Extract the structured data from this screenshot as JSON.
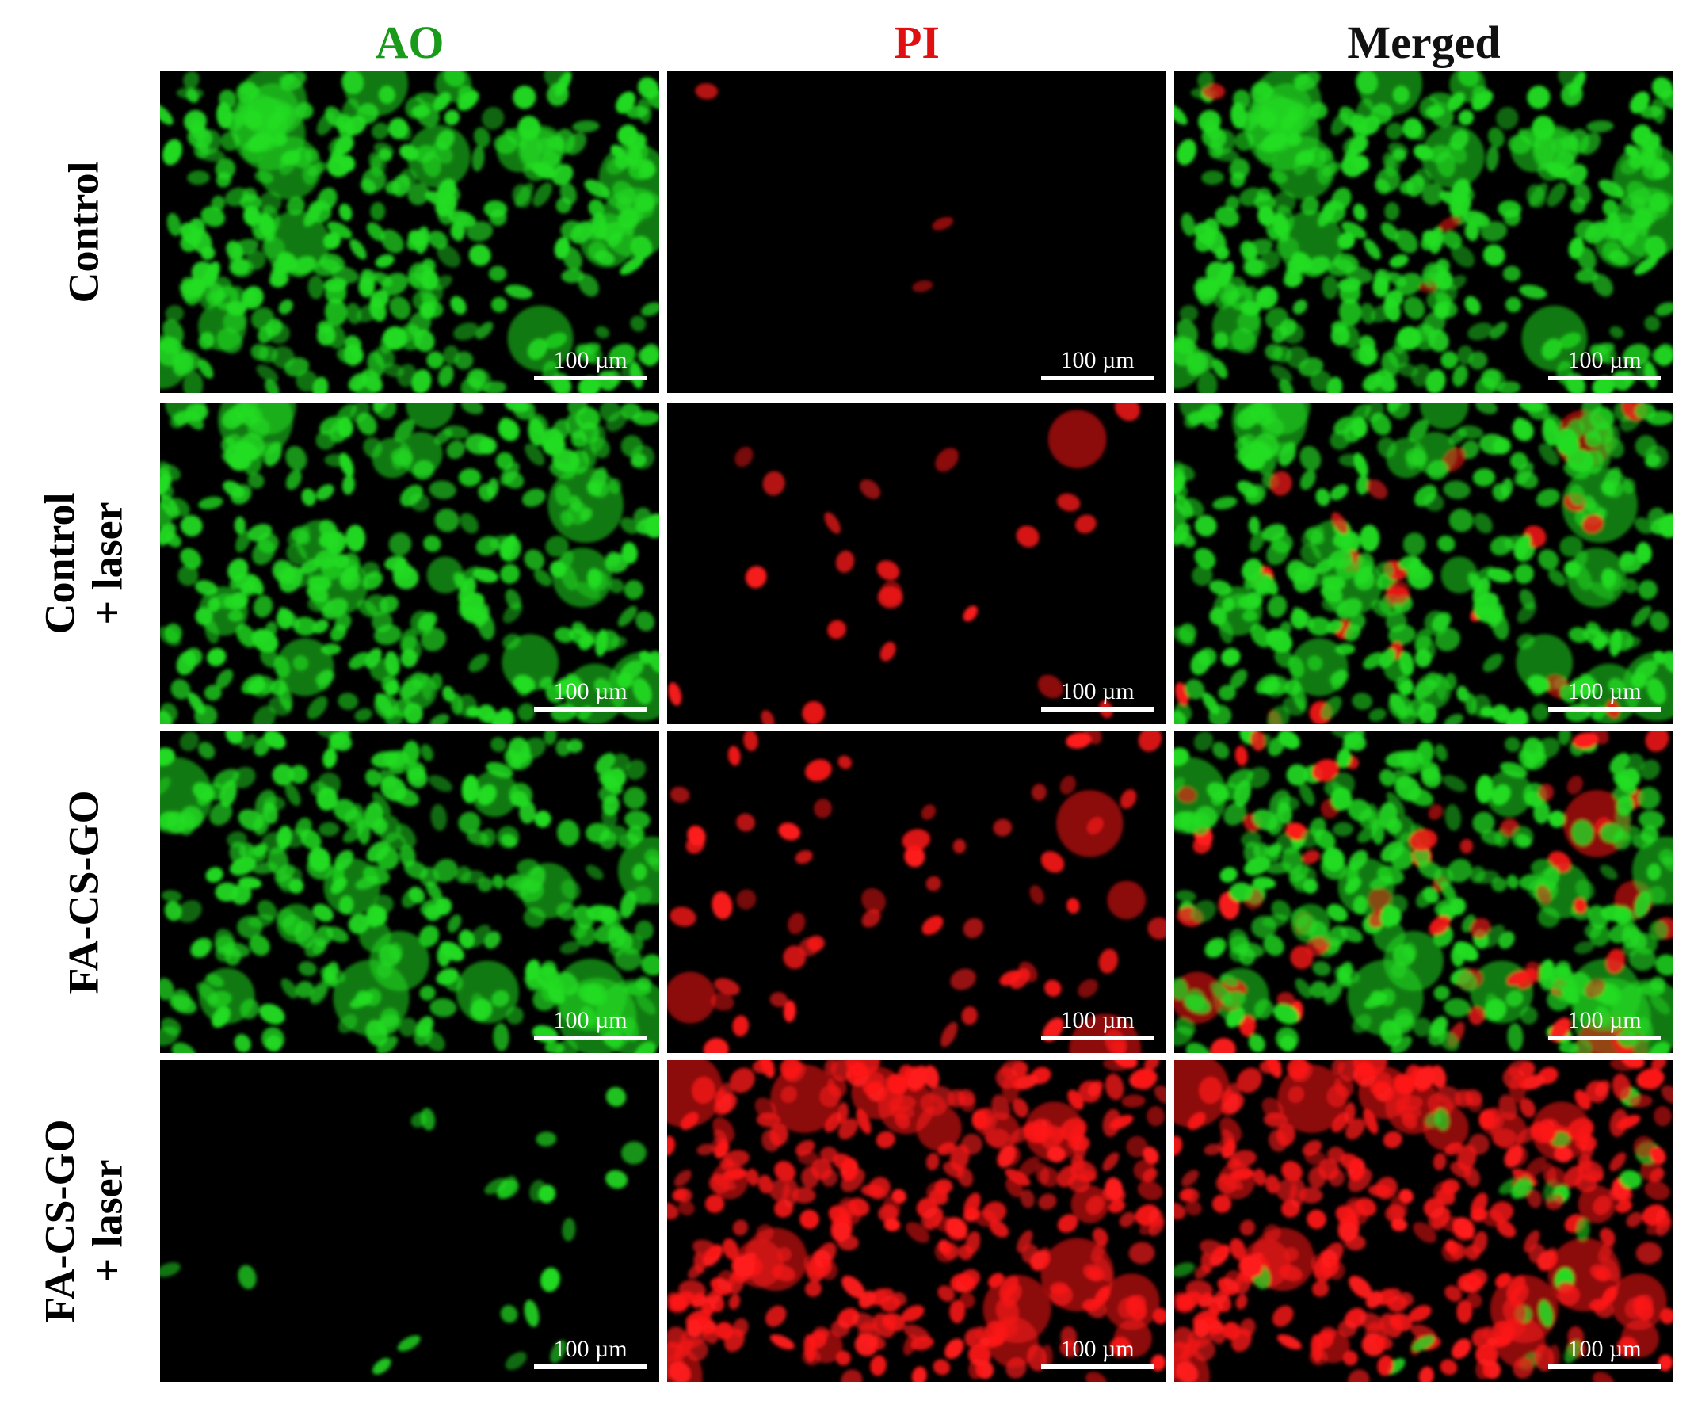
{
  "columns": [
    {
      "label": "AO",
      "color": "#1a9a1a"
    },
    {
      "label": "PI",
      "color": "#e01010"
    },
    {
      "label": "Merged",
      "color": "#111111"
    }
  ],
  "rows": [
    {
      "line1": "Control",
      "line2": "",
      "dead_fraction": 0.02
    },
    {
      "line1": "Control",
      "line2": "+ laser",
      "dead_fraction": 0.06
    },
    {
      "line1": "FA-CS-GO",
      "line2": "",
      "dead_fraction": 0.15
    },
    {
      "line1": "FA-CS-GO",
      "line2": "+ laser",
      "dead_fraction": 0.95
    }
  ],
  "scale_bar_label": "100 µm",
  "stain_colors": {
    "live": "#22dd22",
    "dead": "#ff1a1a",
    "background": "#000000"
  }
}
